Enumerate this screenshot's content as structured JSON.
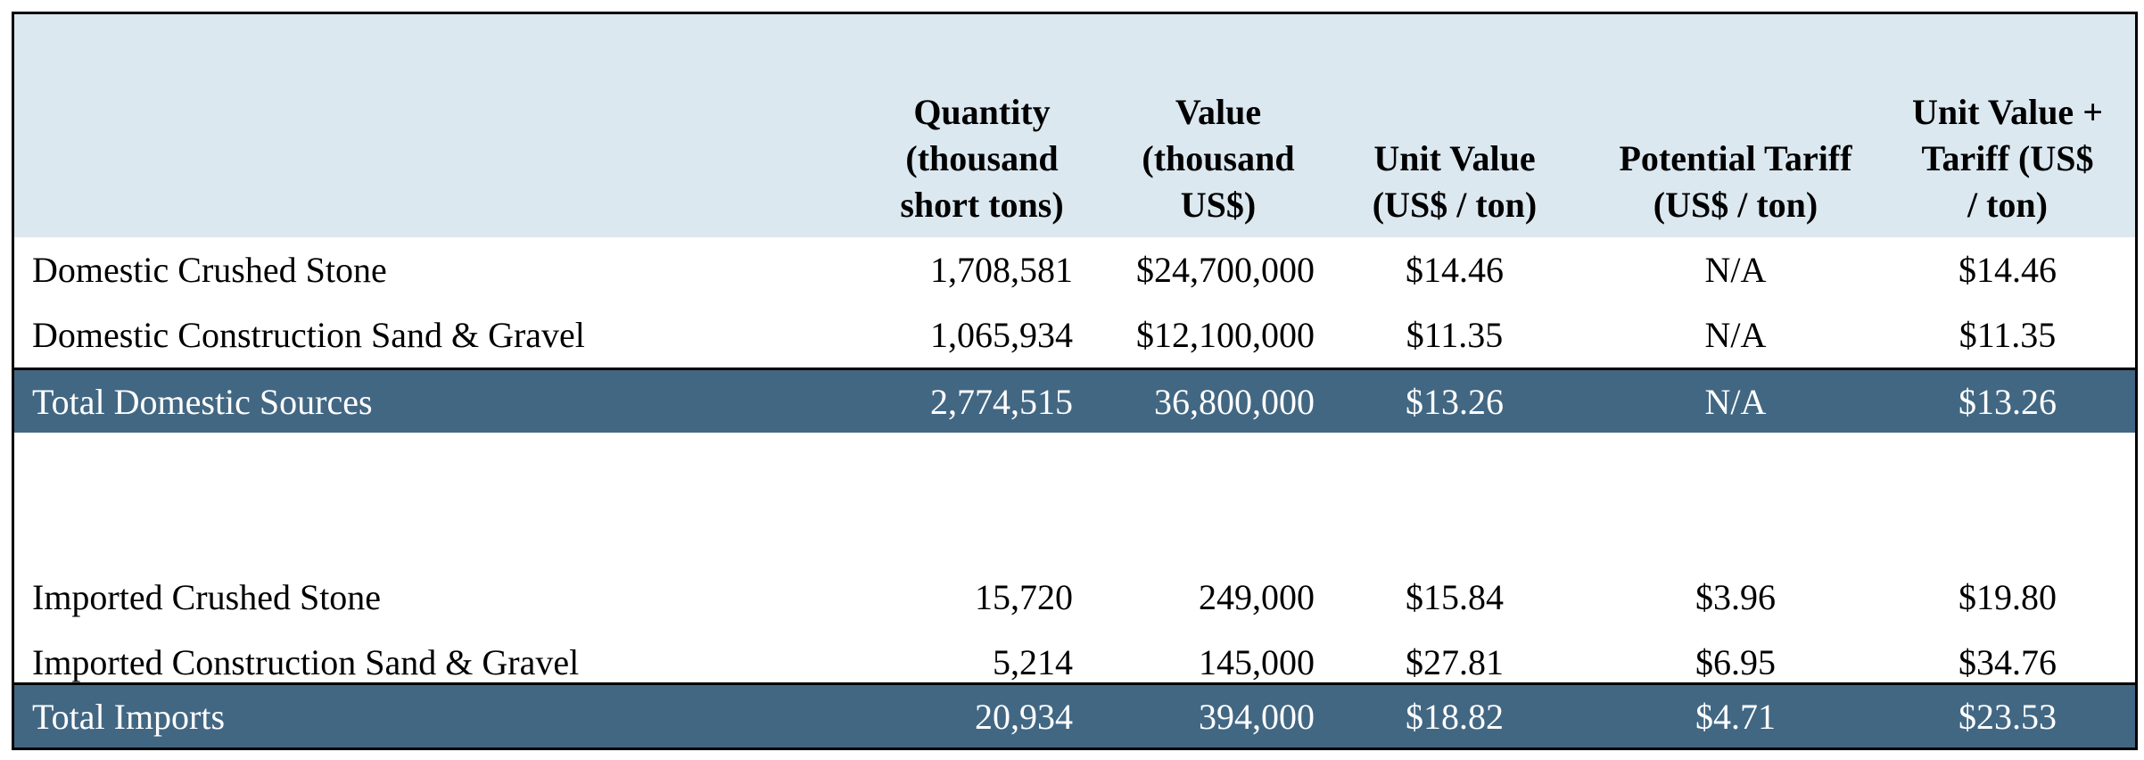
{
  "columns": [
    {
      "lines": [
        "Quantity",
        "(thousand",
        "short tons)"
      ]
    },
    {
      "lines": [
        "Value",
        "(thousand",
        "US$)"
      ]
    },
    {
      "lines": [
        "Unit Value",
        "(US$ / ton)"
      ]
    },
    {
      "lines": [
        "Potential Tariff",
        "(US$ / ton)"
      ]
    },
    {
      "lines": [
        "Unit Value +",
        "Tariff (US$",
        "/ ton)"
      ]
    }
  ],
  "rows": [
    {
      "label": "Domestic Crushed Stone",
      "quantity": "1,708,581",
      "value": "$24,700,000",
      "unit_value": "$14.46",
      "tariff": "N/A",
      "unit_plus_tariff": "$14.46"
    },
    {
      "label": "Domestic Construction Sand & Gravel",
      "quantity": "1,065,934",
      "value": "$12,100,000",
      "unit_value": "$11.35",
      "tariff": "N/A",
      "unit_plus_tariff": "$11.35"
    },
    {
      "label": "Total Domestic Sources",
      "quantity": "2,774,515",
      "value": "36,800,000",
      "unit_value": "$13.26",
      "tariff": "N/A",
      "unit_plus_tariff": "$13.26"
    },
    {
      "label": "Imported Crushed Stone",
      "quantity": "15,720",
      "value": "249,000",
      "unit_value": "$15.84",
      "tariff": "$3.96",
      "unit_plus_tariff": "$19.80"
    },
    {
      "label": "Imported Construction Sand & Gravel",
      "quantity": "5,214",
      "value": "145,000",
      "unit_value": "$27.81",
      "tariff": "$6.95",
      "unit_plus_tariff": "$34.76"
    },
    {
      "label": "Total Imports",
      "quantity": "20,934",
      "value": "394,000",
      "unit_value": "$18.82",
      "tariff": "$4.71",
      "unit_plus_tariff": "$23.53"
    }
  ],
  "colors": {
    "header_background": "#dce8f0",
    "total_row_background": "#426783",
    "total_row_text": "#ffffff"
  }
}
